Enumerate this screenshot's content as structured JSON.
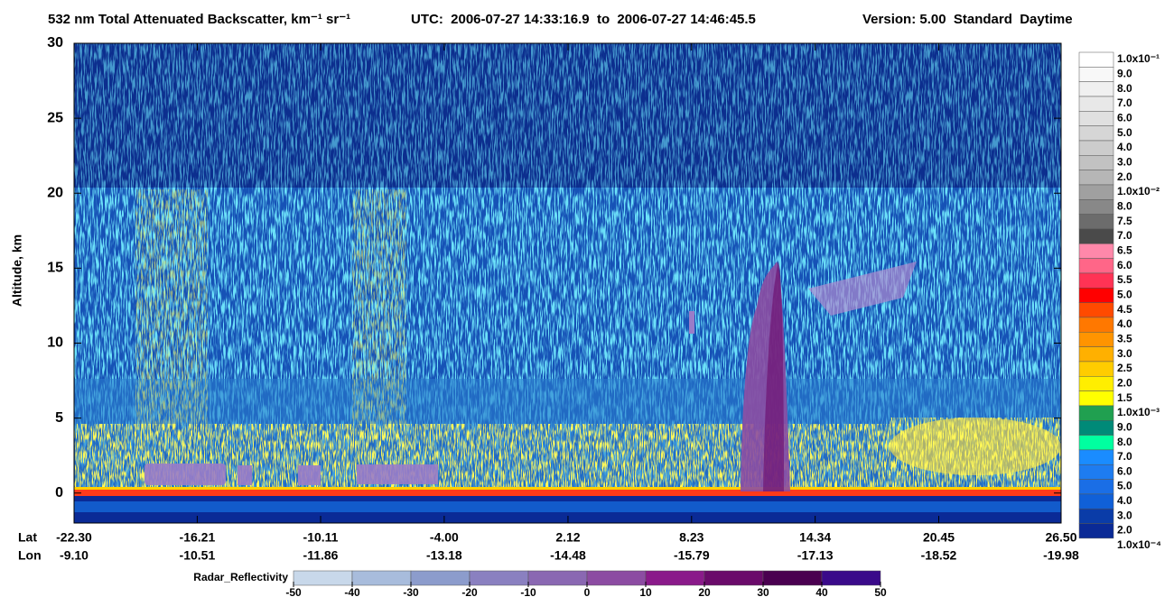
{
  "chart_data": {
    "type": "curtain",
    "title": "532 nm Total Attenuated Backscatter, km⁻¹ sr⁻¹",
    "subtitle": "UTC:  2006-07-27 14:33:16.9  to  2006-07-27 14:46:45.5",
    "version": "Version: 5.00  Standard  Daytime",
    "ylabel": "Altitude, km",
    "ylim": [
      -2,
      30
    ],
    "yticks": [
      0,
      5,
      10,
      15,
      20,
      25,
      30
    ],
    "xlabel": "Lat",
    "x2label": "Lon",
    "xlim": [
      -22.3,
      26.5
    ],
    "xticks": [
      {
        "value": -22.3,
        "label": "-22.30"
      },
      {
        "value": -16.21,
        "label": "-16.21"
      },
      {
        "value": -10.11,
        "label": "-10.11"
      },
      {
        "value": -4,
        "label": "-4.00"
      },
      {
        "value": 2.12,
        "label": "2.12"
      },
      {
        "value": 8.23,
        "label": "8.23"
      },
      {
        "value": 14.34,
        "label": "14.34"
      },
      {
        "value": 20.45,
        "label": "20.45"
      },
      {
        "value": 26.5,
        "label": "26.50"
      }
    ],
    "x2ticklabels": [
      "-9.10",
      "-10.51",
      "-11.86",
      "-13.18",
      "-14.48",
      "-15.79",
      "-17.13",
      "-18.52",
      "-19.98"
    ],
    "colorbar": {
      "labels": [
        "1.0x10⁻¹",
        "9.0",
        "8.0",
        "7.0",
        "6.0",
        "5.0",
        "4.0",
        "3.0",
        "2.0",
        "1.0x10⁻²",
        "8.0",
        "7.5",
        "7.0",
        "6.5",
        "6.0",
        "5.5",
        "5.0",
        "4.5",
        "4.0",
        "3.5",
        "3.0",
        "2.5",
        "2.0",
        "1.5",
        "1.0x10⁻³",
        "9.0",
        "8.0",
        "7.0",
        "6.0",
        "5.0",
        "4.0",
        "3.0",
        "2.0",
        "1.0x10⁻⁴"
      ],
      "colors": [
        "#ffffff",
        "#f8f8f8",
        "#f0f0f0",
        "#e8e8e8",
        "#e0e0e0",
        "#d6d6d6",
        "#cccccc",
        "#c2c2c2",
        "#b6b6b6",
        "#a0a0a0",
        "#888888",
        "#6c6c6c",
        "#4a4a4a",
        "#ff88aa",
        "#ff6688",
        "#ff3355",
        "#ff0000",
        "#ff4a00",
        "#ff7800",
        "#ff9400",
        "#ffb000",
        "#ffcc00",
        "#ffee00",
        "#ffff00",
        "#20a050",
        "#008a78",
        "#00ffa0",
        "#1a8cff",
        "#1e7cf0",
        "#1a6ee6",
        "#1060d8",
        "#0a3ca8",
        "#0a2a96"
      ]
    },
    "radar_colorbar": {
      "label": "Radar_Reflectivity",
      "ticks": [
        -50,
        -40,
        -30,
        -20,
        -10,
        0,
        10,
        20,
        30,
        40,
        50
      ],
      "colors": [
        "#c8d8ea",
        "#a8bcdc",
        "#8c9ccc",
        "#8a80c0",
        "#8a68b2",
        "#8c4ca2",
        "#8a1a8a",
        "#6a0a6a",
        "#4a0050",
        "#3a0a8a"
      ]
    }
  }
}
